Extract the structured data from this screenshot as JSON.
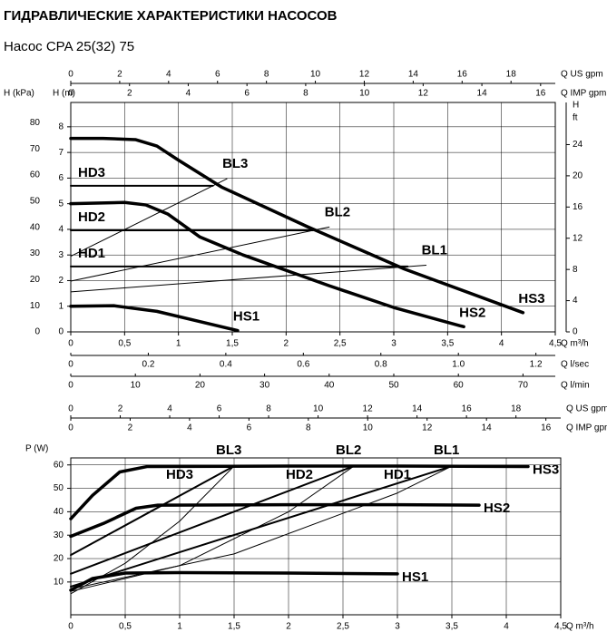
{
  "page_title": "ГИДРАВЛИЧЕСКИЕ ХАРАКТЕРИСТИКИ НАСОСОВ",
  "pump_name": "Насос CPA 25(32) 75",
  "chart_data": [
    {
      "type": "line",
      "grid": true,
      "xlabel": "Q m³/h",
      "xlim": [
        0,
        4.5
      ],
      "xticks": [
        0,
        {
          "value": 0.5,
          "label": "0,5"
        },
        1,
        {
          "value": 1.5,
          "label": "1,5"
        },
        2,
        {
          "value": 2.5,
          "label": "2,5"
        },
        3,
        {
          "value": 3.5,
          "label": "3,5"
        },
        4,
        {
          "value": 4.5,
          "label": "4,5"
        }
      ],
      "ylabel": "H (m)",
      "ylim": [
        0,
        8.95
      ],
      "yticks": [
        0,
        1,
        2,
        3,
        4,
        5,
        6,
        7,
        8
      ],
      "extra_axes": [
        {
          "side": "top",
          "label": "Q US gpm",
          "lim": [
            0,
            19.81
          ],
          "ticks": [
            0,
            2,
            4,
            6,
            8,
            10,
            12,
            14,
            16,
            18
          ]
        },
        {
          "side": "top",
          "label": "Q IMP gpm",
          "lim": [
            0,
            16.5
          ],
          "ticks": [
            0,
            2,
            4,
            6,
            8,
            10,
            12,
            14,
            16
          ]
        },
        {
          "side": "bottom",
          "label": "Q l/sec",
          "lim": [
            0,
            1.25
          ],
          "ticks": [
            0,
            0.2,
            0.4,
            0.6,
            0.8,
            {
              "value": 1,
              "label": "1.0"
            },
            1.2
          ]
        },
        {
          "side": "bottom",
          "label": "Q l/min",
          "lim": [
            0,
            75
          ],
          "ticks": [
            0,
            10,
            20,
            30,
            40,
            50,
            60,
            70
          ]
        },
        {
          "side": "left",
          "label": "H (kPa)",
          "lim": [
            0,
            87.8
          ],
          "ticks": [
            0,
            10,
            20,
            30,
            40,
            50,
            60,
            70,
            80
          ]
        },
        {
          "side": "right",
          "label": "H",
          "unit": "ft",
          "lim": [
            0,
            29.4
          ],
          "ticks": [
            0,
            4,
            8,
            12,
            16,
            20,
            24
          ]
        }
      ],
      "series": [
        {
          "name": "HS3",
          "color": "#000000",
          "width": 3.5,
          "x": [
            0,
            0.3,
            0.6,
            0.8,
            1.0,
            1.4,
            2.2,
            3.1,
            4.2
          ],
          "values": [
            7.55,
            7.55,
            7.5,
            7.25,
            6.7,
            5.65,
            4.1,
            2.45,
            0.75
          ]
        },
        {
          "name": "HS2",
          "color": "#000000",
          "width": 3.5,
          "x": [
            0,
            0.5,
            0.7,
            0.9,
            1.2,
            1.6,
            2.4,
            3.0,
            3.65
          ],
          "values": [
            5.0,
            5.05,
            4.95,
            4.6,
            3.7,
            3.0,
            1.8,
            0.95,
            0.2
          ]
        },
        {
          "name": "HS1",
          "color": "#000000",
          "width": 3.5,
          "x": [
            0,
            0.4,
            0.8,
            1.2,
            1.55
          ],
          "values": [
            1.0,
            1.02,
            0.8,
            0.4,
            0.05
          ]
        },
        {
          "name": "HD3",
          "color": "#000000",
          "width": 2,
          "x": [
            0,
            1.32
          ],
          "values": [
            5.7,
            5.7
          ]
        },
        {
          "name": "HD2",
          "color": "#000000",
          "width": 2,
          "x": [
            0,
            2.25
          ],
          "values": [
            3.96,
            3.96
          ]
        },
        {
          "name": "HD1",
          "color": "#000000",
          "width": 2,
          "x": [
            0,
            3.13
          ],
          "values": [
            2.55,
            2.55
          ]
        },
        {
          "name": "BL3",
          "color": "#000000",
          "width": 1,
          "x": [
            0,
            1.45
          ],
          "values": [
            2.95,
            5.97
          ]
        },
        {
          "name": "BL2",
          "color": "#000000",
          "width": 1,
          "x": [
            0,
            2.4
          ],
          "values": [
            1.98,
            4.09
          ]
        },
        {
          "name": "BL1",
          "color": "#000000",
          "width": 1,
          "x": [
            0,
            3.3
          ],
          "values": [
            1.56,
            2.6
          ]
        }
      ]
    },
    {
      "type": "line",
      "grid": true,
      "xlabel": "Q m³/h",
      "xlim": [
        0,
        4.5
      ],
      "xticks": [
        0,
        {
          "value": 0.5,
          "label": "0,5"
        },
        1,
        {
          "value": 1.5,
          "label": "1,5"
        },
        2,
        {
          "value": 2.5,
          "label": "2,5"
        },
        3,
        {
          "value": 3.5,
          "label": "3,5"
        },
        4,
        {
          "value": 4.5,
          "label": "4,5"
        }
      ],
      "ylabel": "P (W)",
      "ylim": [
        -4,
        63
      ],
      "yticks": [
        10,
        20,
        30,
        40,
        50,
        60
      ],
      "extra_axes": [
        {
          "side": "top",
          "label": "Q US gpm",
          "lim": [
            0,
            19.81
          ],
          "ticks": [
            0,
            2,
            4,
            6,
            8,
            10,
            12,
            14,
            16,
            18
          ]
        },
        {
          "side": "top",
          "label": "Q IMP gpm",
          "lim": [
            0,
            16.5
          ],
          "ticks": [
            0,
            2,
            4,
            6,
            8,
            10,
            12,
            14,
            16
          ]
        }
      ],
      "series": [
        {
          "name": "HS3",
          "color": "#000000",
          "width": 3.5,
          "x": [
            0,
            0.2,
            0.45,
            0.7,
            2.0,
            3.0,
            4.2
          ],
          "values": [
            37,
            47,
            57,
            59.3,
            59.5,
            59.5,
            59.3
          ]
        },
        {
          "name": "HS2",
          "color": "#000000",
          "width": 3.5,
          "x": [
            0,
            0.3,
            0.6,
            0.8,
            2.0,
            3.0,
            3.75
          ],
          "values": [
            29.5,
            35,
            41.5,
            42.8,
            43,
            43,
            42.8
          ]
        },
        {
          "name": "HS1",
          "color": "#000000",
          "width": 3.5,
          "x": [
            0,
            0.2,
            0.5,
            1.0,
            2.0,
            3.0
          ],
          "values": [
            6.5,
            11.5,
            13.8,
            14,
            13.8,
            13.5
          ]
        },
        {
          "name": "HD3",
          "color": "#000000",
          "width": 2,
          "x": [
            0,
            1.5
          ],
          "values": [
            21.5,
            59.5
          ]
        },
        {
          "name": "HD2",
          "color": "#000000",
          "width": 2,
          "x": [
            0,
            2.6
          ],
          "values": [
            13.5,
            59.5
          ]
        },
        {
          "name": "HD1",
          "color": "#000000",
          "width": 2,
          "x": [
            0,
            3.5
          ],
          "values": [
            8,
            59.5
          ]
        },
        {
          "name": "BL3",
          "color": "#000000",
          "width": 1,
          "x": [
            0,
            0.5,
            1.0,
            1.5
          ],
          "values": [
            5,
            18,
            36,
            59.5
          ]
        },
        {
          "name": "BL2",
          "color": "#000000",
          "width": 1,
          "x": [
            0,
            1.0,
            2.0,
            2.6
          ],
          "values": [
            6,
            17,
            40,
            59.5
          ]
        },
        {
          "name": "BL1",
          "color": "#000000",
          "width": 1,
          "x": [
            0,
            1.5,
            3.0,
            3.5
          ],
          "values": [
            7,
            22,
            48,
            59.5
          ]
        }
      ]
    }
  ]
}
